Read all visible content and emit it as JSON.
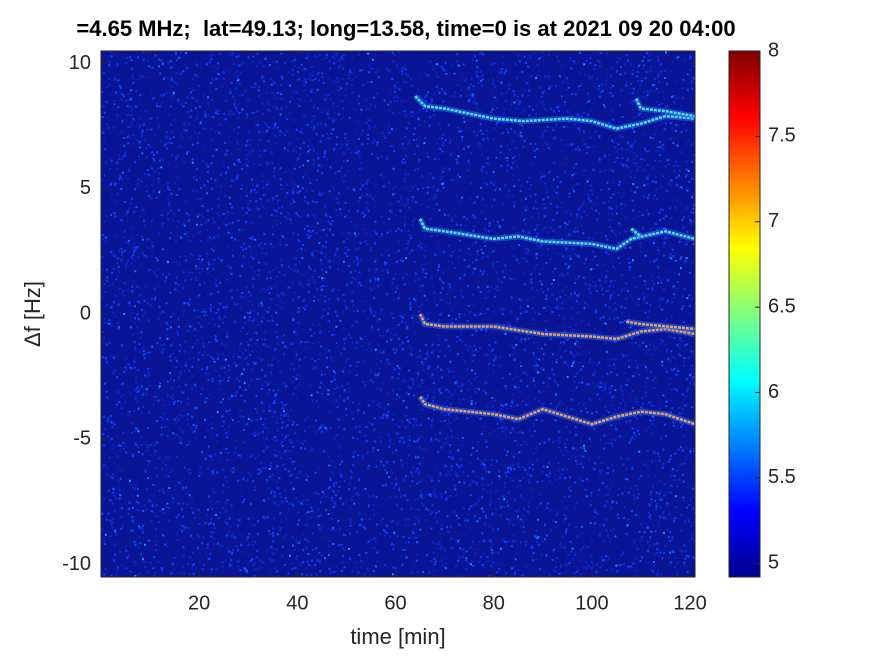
{
  "chart_data": {
    "type": "spectrogram",
    "title": "=4.65 MHz;  lat=49.13; long=13.58, time=0 is at 2021 09 20 04:00",
    "x_label": "time [min]",
    "y_label": "Δf [Hz]",
    "xlim": [
      0,
      121
    ],
    "ylim": [
      -10.5,
      10.5
    ],
    "xticks": [
      20,
      40,
      60,
      80,
      100,
      120
    ],
    "yticks": [
      -10,
      -5,
      0,
      5,
      10
    ],
    "clim": [
      4.92,
      8
    ],
    "colorbar_ticks": [
      5,
      5.5,
      6,
      6.5,
      7,
      7.5,
      8
    ],
    "background": "#0a1596",
    "series": [
      {
        "color": "#4fe0e0",
        "x": [
          64,
          66,
          70,
          80,
          86,
          95,
          100,
          105,
          110,
          115,
          121
        ],
        "values": [
          8.7,
          8.3,
          8.2,
          7.8,
          7.7,
          7.8,
          7.7,
          7.4,
          7.6,
          7.9,
          7.8
        ]
      },
      {
        "color": "#4fe0e0",
        "x": [
          109,
          110,
          115,
          121
        ],
        "values": [
          8.6,
          8.2,
          8.1,
          7.9
        ]
      },
      {
        "color": "#55e0d0",
        "x": [
          65,
          66,
          70,
          80,
          85,
          90,
          100,
          105,
          108,
          115,
          121
        ],
        "values": [
          3.8,
          3.4,
          3.3,
          3.0,
          3.1,
          2.9,
          2.8,
          2.6,
          3.0,
          3.3,
          3.0
        ]
      },
      {
        "color": "#55e0d0",
        "x": [
          108,
          110
        ],
        "values": [
          3.4,
          3.1
        ]
      },
      {
        "color": "#f0a050",
        "x": [
          65,
          66,
          70,
          80,
          90,
          100,
          105,
          110,
          115,
          121
        ],
        "values": [
          0.0,
          -0.4,
          -0.5,
          -0.5,
          -0.8,
          -0.9,
          -1.0,
          -0.7,
          -0.6,
          -0.8
        ]
      },
      {
        "color": "#f0a050",
        "x": [
          107,
          110,
          121
        ],
        "values": [
          -0.3,
          -0.4,
          -0.6
        ]
      },
      {
        "color": "#f0a050",
        "x": [
          65,
          66,
          70,
          80,
          85,
          90,
          95,
          100,
          105,
          110,
          115,
          121
        ],
        "values": [
          -3.3,
          -3.6,
          -3.8,
          -4.0,
          -4.2,
          -3.8,
          -4.1,
          -4.4,
          -4.1,
          -3.9,
          -4.0,
          -4.4
        ]
      }
    ]
  }
}
